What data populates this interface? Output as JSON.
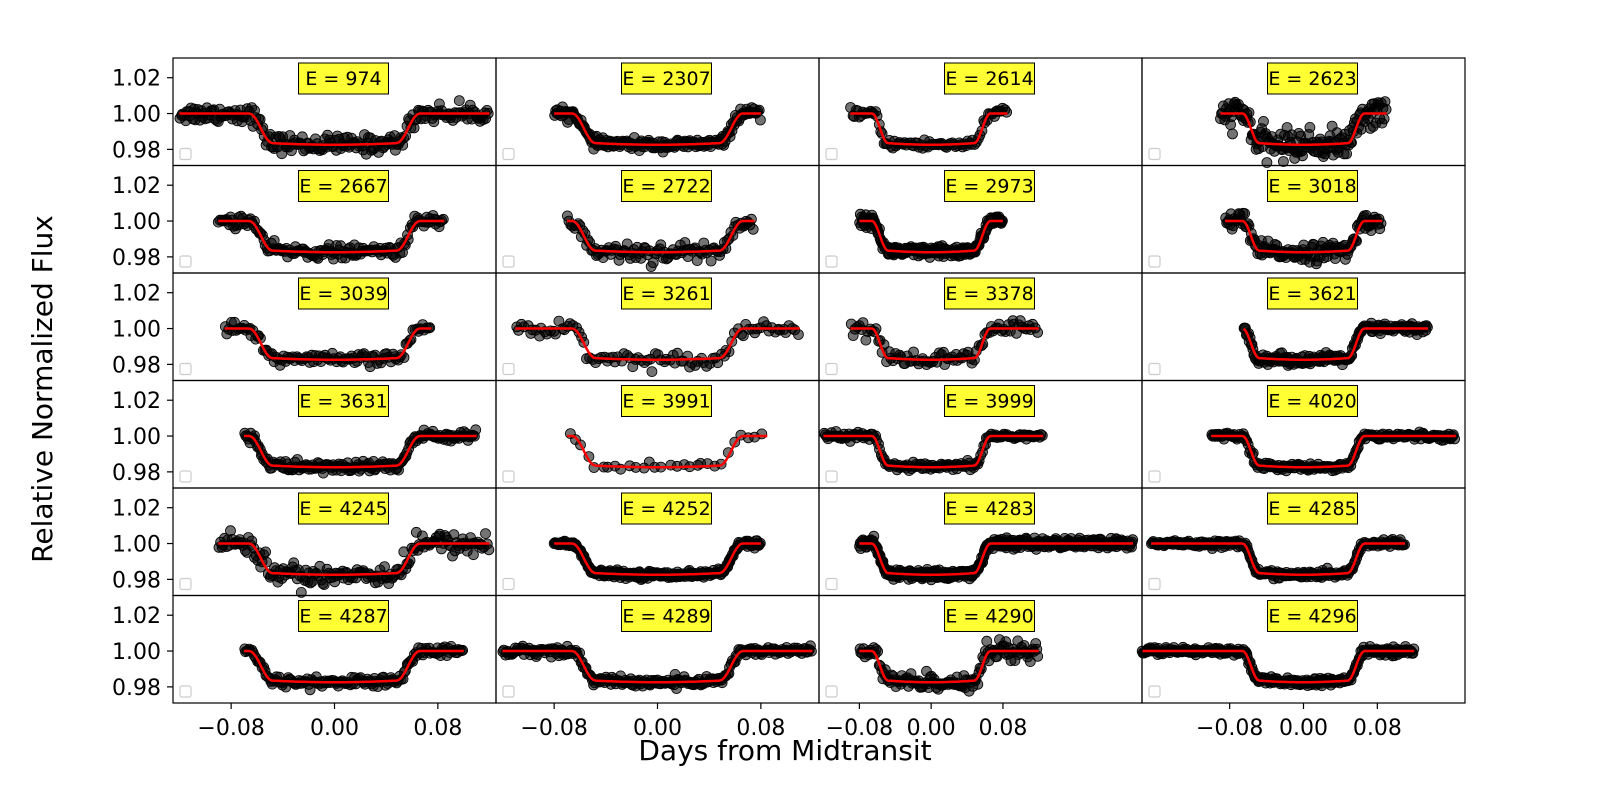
{
  "chart_data": {
    "type": "scatter",
    "description": "Grid of 24 transit light curves (6 rows x 4 columns), black points = observed data, red line = transit model",
    "xlabel": "Days from Midtransit",
    "ylabel": "Relative Normalized Flux",
    "ylim": [
      0.971,
      1.031
    ],
    "yticks": [
      0.98,
      1.0,
      1.02
    ],
    "ytick_labels": [
      "0.98",
      "1.00",
      "1.02"
    ],
    "xlim_per_column": [
      [
        -0.125,
        0.125
      ],
      [
        -0.125,
        0.125
      ],
      [
        -0.125,
        0.235
      ],
      [
        -0.175,
        0.175
      ]
    ],
    "xticks": [
      -0.08,
      0.0,
      0.08
    ],
    "xtick_labels": [
      "−0.08",
      "0.00",
      "0.08"
    ],
    "colors": {
      "data_points": "#000000",
      "model_line": "#ff0000",
      "label_box": "#ffff33",
      "frame": "#000000"
    },
    "transit_model": {
      "depth": 0.0165,
      "total_half_duration": 0.066,
      "flat_half_duration": 0.048
    },
    "panels": [
      {
        "label": "E = 974",
        "x_range": [
          -0.12,
          0.12
        ],
        "noise": 0.0025,
        "n": 220
      },
      {
        "label": "E = 2307",
        "x_range": [
          -0.08,
          0.08
        ],
        "noise": 0.0014,
        "n": 200
      },
      {
        "label": "E = 2614",
        "x_range": [
          -0.09,
          0.085
        ],
        "noise": 0.0014,
        "n": 90
      },
      {
        "label": "E = 2623",
        "x_range": [
          -0.09,
          0.09
        ],
        "noise": 0.004,
        "n": 170
      },
      {
        "label": "E = 2667",
        "x_range": [
          -0.09,
          0.085
        ],
        "noise": 0.0018,
        "n": 150
      },
      {
        "label": "E = 2722",
        "x_range": [
          -0.07,
          0.075
        ],
        "noise": 0.0028,
        "n": 110
      },
      {
        "label": "E = 2973",
        "x_range": [
          -0.08,
          0.08
        ],
        "noise": 0.0016,
        "n": 210
      },
      {
        "label": "E = 3018",
        "x_range": [
          -0.085,
          0.085
        ],
        "noise": 0.0025,
        "n": 140
      },
      {
        "label": "E = 3039",
        "x_range": [
          -0.085,
          0.075
        ],
        "noise": 0.0016,
        "n": 110
      },
      {
        "label": "E = 3261",
        "x_range": [
          -0.11,
          0.11
        ],
        "noise": 0.002,
        "n": 100
      },
      {
        "label": "E = 3378",
        "x_range": [
          -0.09,
          0.12
        ],
        "noise": 0.0022,
        "n": 90
      },
      {
        "label": "E = 3621",
        "x_range": [
          -0.065,
          0.135
        ],
        "noise": 0.0014,
        "n": 200
      },
      {
        "label": "E = 3631",
        "x_range": [
          -0.07,
          0.11
        ],
        "noise": 0.0016,
        "n": 180
      },
      {
        "label": "E = 3991",
        "x_range": [
          -0.07,
          0.085
        ],
        "noise": 0.0012,
        "n": 30
      },
      {
        "label": "E = 3999",
        "x_range": [
          -0.12,
          0.125
        ],
        "noise": 0.001,
        "n": 150
      },
      {
        "label": "E = 4020",
        "x_range": [
          -0.1,
          0.165
        ],
        "noise": 0.0009,
        "n": 200
      },
      {
        "label": "E = 4245",
        "x_range": [
          -0.09,
          0.12
        ],
        "noise": 0.003,
        "n": 180
      },
      {
        "label": "E = 4252",
        "x_range": [
          -0.08,
          0.08
        ],
        "noise": 0.0009,
        "n": 260
      },
      {
        "label": "E = 4283",
        "x_range": [
          -0.08,
          0.225
        ],
        "noise": 0.0013,
        "n": 480
      },
      {
        "label": "E = 4285",
        "x_range": [
          -0.165,
          0.11
        ],
        "noise": 0.0009,
        "n": 260
      },
      {
        "label": "E = 4287",
        "x_range": [
          -0.07,
          0.1
        ],
        "noise": 0.0014,
        "n": 150
      },
      {
        "label": "E = 4289",
        "x_range": [
          -0.12,
          0.12
        ],
        "noise": 0.0013,
        "n": 250
      },
      {
        "label": "E = 4290",
        "x_range": [
          -0.08,
          0.12
        ],
        "noise": 0.0025,
        "n": 140
      },
      {
        "label": "E = 4296",
        "x_range": [
          -0.175,
          0.12
        ],
        "noise": 0.001,
        "n": 300
      }
    ]
  }
}
